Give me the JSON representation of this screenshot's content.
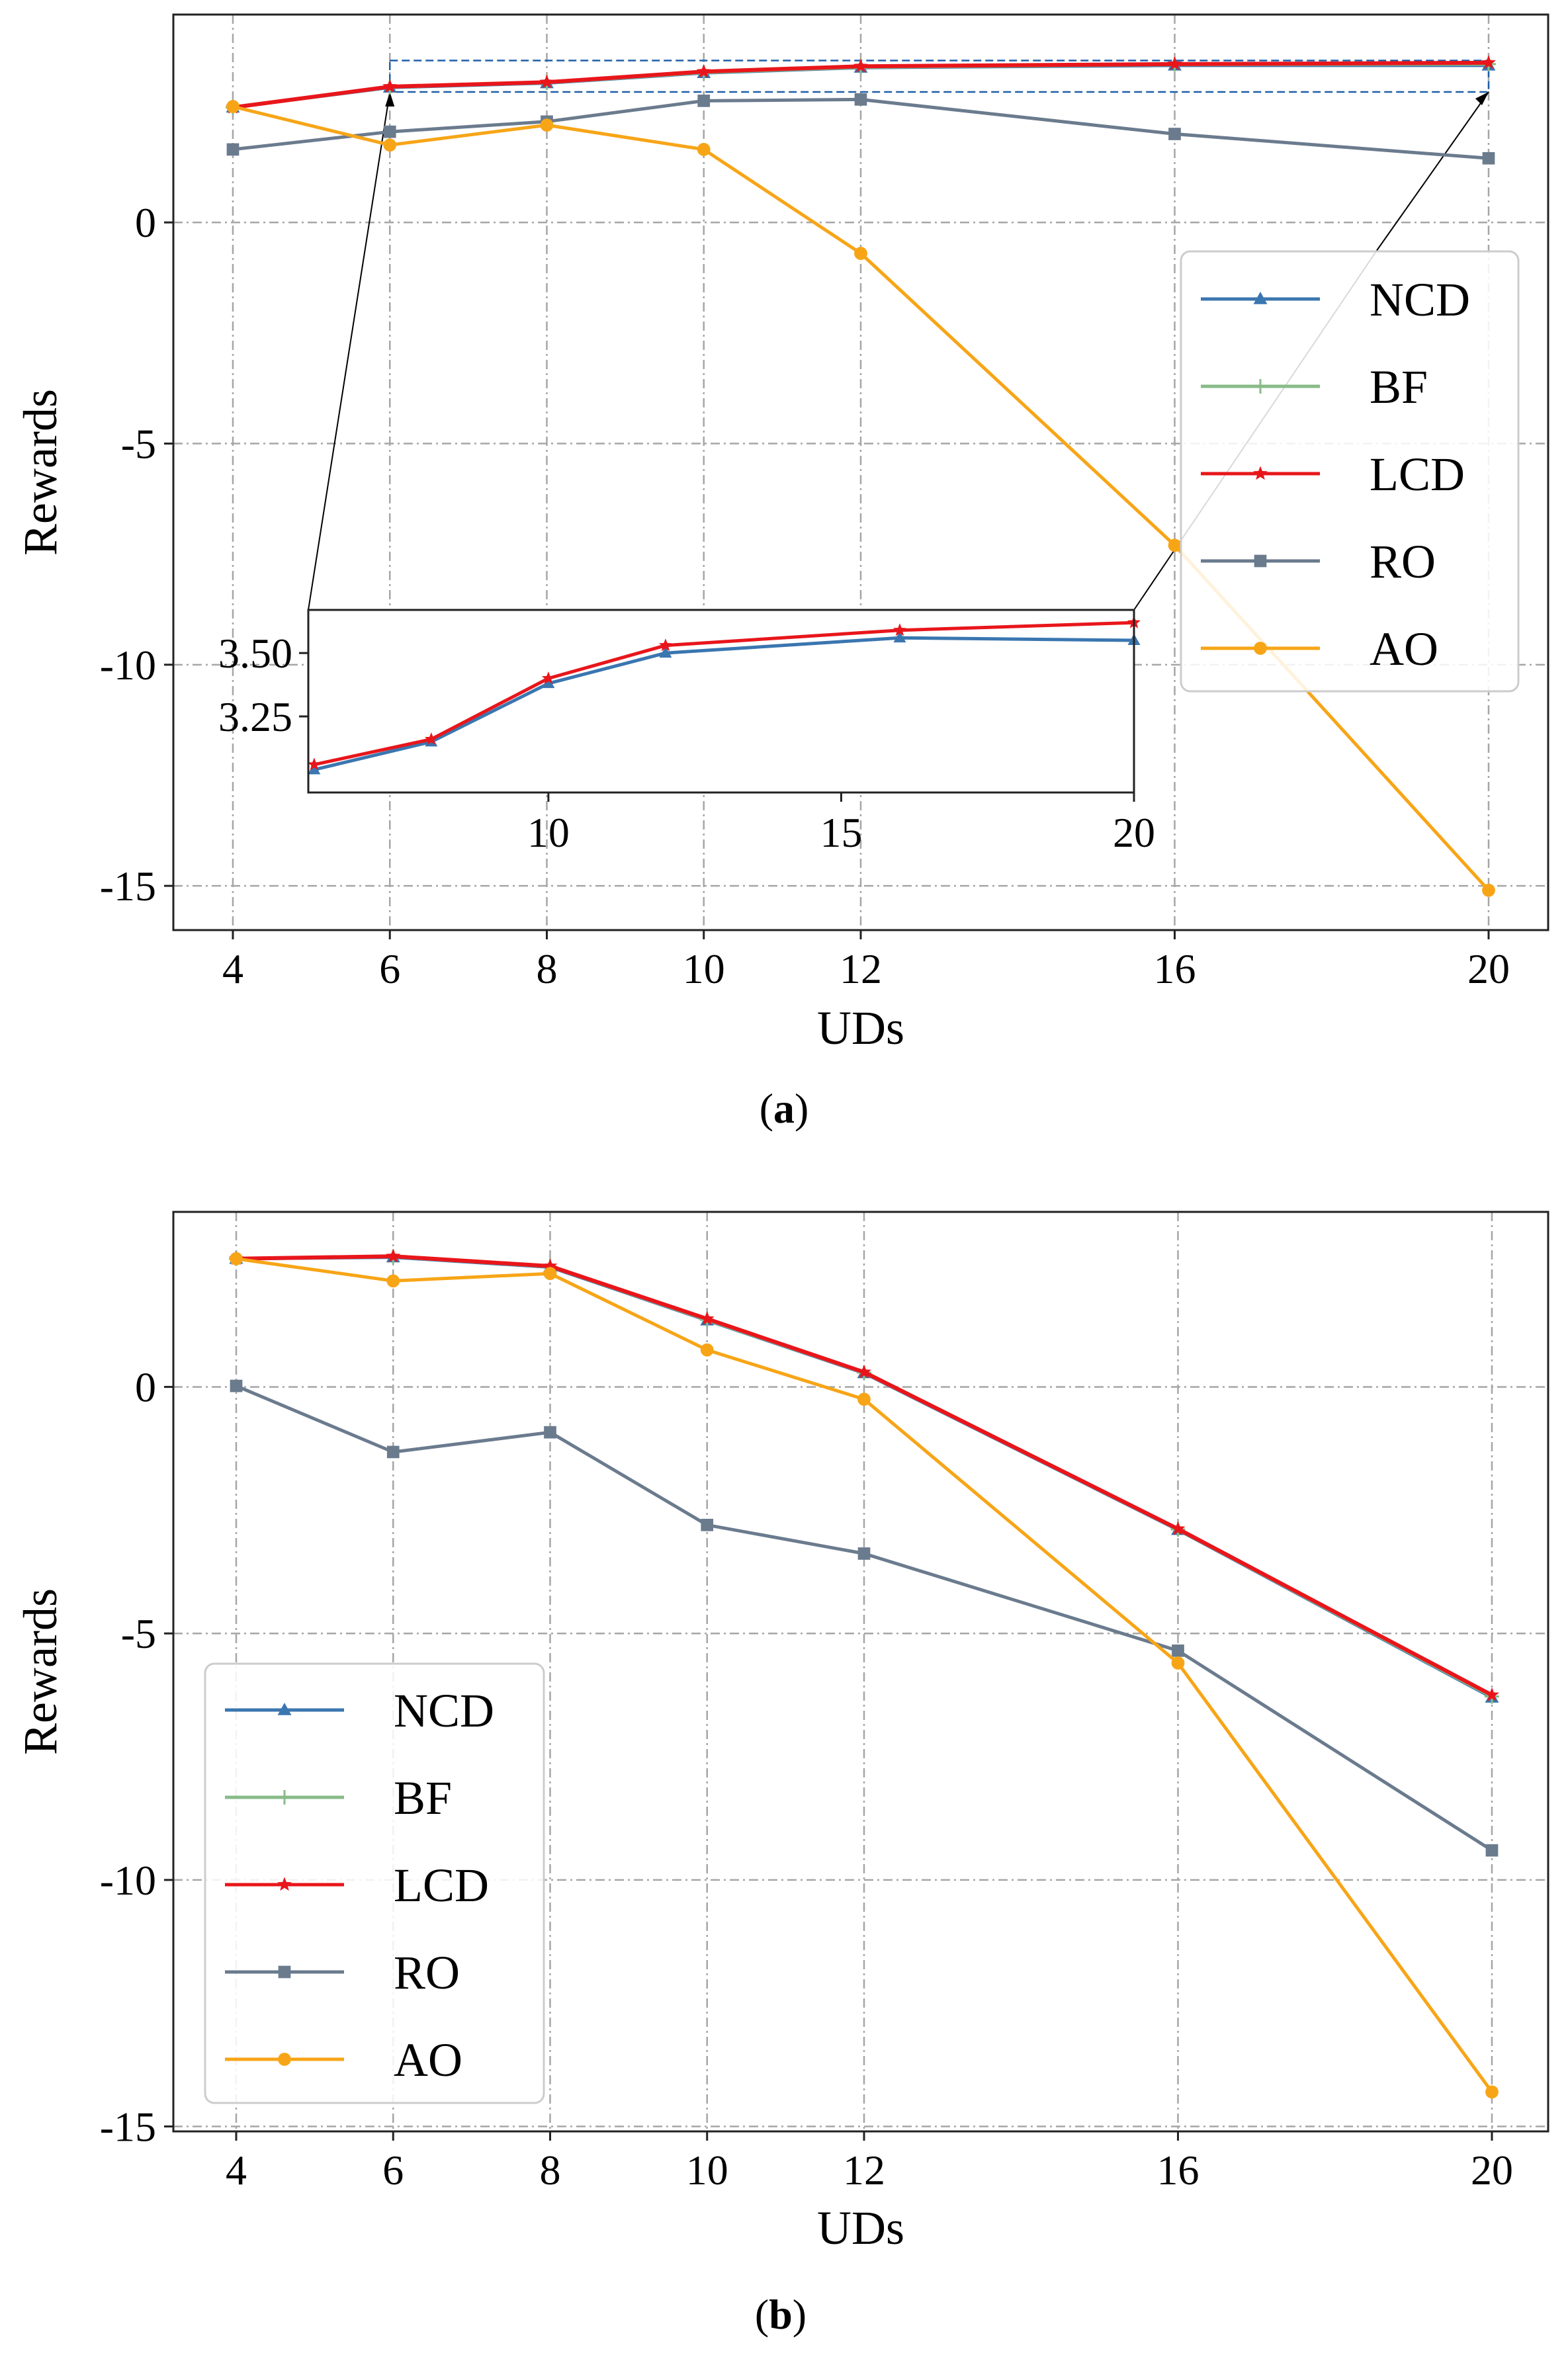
{
  "chart_data": [
    {
      "type": "line",
      "id": "a",
      "caption": "(a)",
      "xlabel": "UDs",
      "ylabel": "Rewards",
      "categories": [
        "4",
        "6",
        "8",
        "10",
        "12",
        "16",
        "20"
      ],
      "ytick_labels": [
        "0",
        "-5",
        "-10",
        "-15"
      ],
      "ytick_values": [
        0,
        -5,
        -10,
        -15
      ],
      "ylim": [
        -16,
        4.7
      ],
      "series": [
        {
          "name": "NCD",
          "color": "#3a76b0",
          "marker": "triangle",
          "values": [
            2.6,
            3.05,
            3.15,
            3.38,
            3.5,
            3.55,
            3.55
          ]
        },
        {
          "name": "BF",
          "color": "#88bb88",
          "marker": "plus",
          "values": [
            2.6,
            3.06,
            3.16,
            3.39,
            3.51,
            3.57,
            3.58
          ]
        },
        {
          "name": "LCD",
          "color": "#e8161b",
          "marker": "star",
          "values": [
            2.6,
            3.07,
            3.17,
            3.41,
            3.53,
            3.58,
            3.61
          ]
        },
        {
          "name": "RO",
          "color": "#6b7b8e",
          "marker": "square",
          "values": [
            1.65,
            2.05,
            2.28,
            2.75,
            2.78,
            2.0,
            1.45
          ]
        },
        {
          "name": "AO",
          "color": "#f7a517",
          "marker": "circle",
          "values": [
            2.62,
            1.75,
            2.2,
            1.65,
            -0.7,
            -7.3,
            -15.1
          ]
        }
      ],
      "inset": {
        "xtick_labels": [
          "10",
          "15",
          "20"
        ],
        "xtick_values": [
          10,
          15,
          20
        ],
        "ytick_labels": [
          "3.50",
          "3.25"
        ],
        "ytick_values": [
          3.5,
          3.25
        ],
        "xlim": [
          5.9,
          20
        ],
        "ylim": [
          2.95,
          3.67
        ],
        "series": [
          {
            "name": "NCD",
            "x": [
              6,
              8,
              10,
              12,
              16,
              20
            ],
            "values": [
              3.04,
              3.15,
              3.38,
              3.5,
              3.56,
              3.55
            ]
          },
          {
            "name": "LCD",
            "x": [
              6,
              8,
              10,
              12,
              16,
              20
            ],
            "values": [
              3.06,
              3.16,
              3.4,
              3.53,
              3.59,
              3.62
            ]
          }
        ]
      },
      "legend": {
        "position": "right",
        "entries": [
          "NCD",
          "BF",
          "LCD",
          "RO",
          "AO"
        ]
      }
    },
    {
      "type": "line",
      "id": "b",
      "caption": "(b)",
      "xlabel": "UDs",
      "ylabel": "Rewards",
      "categories": [
        "4",
        "6",
        "8",
        "10",
        "12",
        "16",
        "20"
      ],
      "ytick_labels": [
        "0",
        "-5",
        "-10",
        "-15"
      ],
      "ytick_values": [
        0,
        -5,
        -10,
        -15
      ],
      "ylim": [
        -15.1,
        3.55
      ],
      "series": [
        {
          "name": "NCD",
          "color": "#3a76b0",
          "marker": "triangle",
          "values": [
            2.6,
            2.63,
            2.43,
            1.35,
            0.28,
            -2.9,
            -6.3
          ]
        },
        {
          "name": "BF",
          "color": "#88bb88",
          "marker": "plus",
          "values": [
            2.6,
            2.64,
            2.44,
            1.36,
            0.29,
            -2.89,
            -6.28
          ]
        },
        {
          "name": "LCD",
          "color": "#e8161b",
          "marker": "star",
          "values": [
            2.6,
            2.65,
            2.45,
            1.38,
            0.3,
            -2.88,
            -6.25
          ]
        },
        {
          "name": "RO",
          "color": "#6b7b8e",
          "marker": "square",
          "values": [
            0.02,
            -1.32,
            -0.92,
            -2.8,
            -3.38,
            -5.35,
            -9.4
          ]
        },
        {
          "name": "AO",
          "color": "#f7a517",
          "marker": "circle",
          "values": [
            2.6,
            2.15,
            2.3,
            0.75,
            -0.25,
            -5.6,
            -14.3
          ]
        }
      ],
      "legend": {
        "position": "lower-left",
        "entries": [
          "NCD",
          "BF",
          "LCD",
          "RO",
          "AO"
        ]
      }
    }
  ]
}
